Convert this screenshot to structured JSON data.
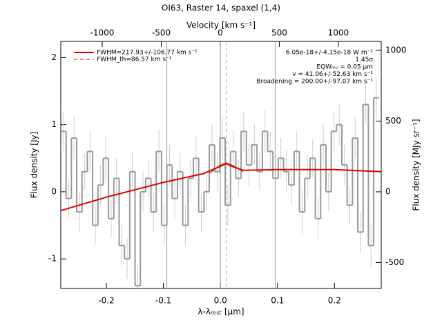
{
  "chart_data": {
    "type": "step",
    "title": "OI63, Raster 14, spaxel (1,4)",
    "xlabel": "λ-λᵣₑₛₜ [μm]",
    "ylabel": "Flux density [Jy]",
    "y2label": "Flux density [MJy sr⁻¹]",
    "x2label": "Velocity [km s⁻¹]",
    "xlim": [
      -0.28,
      0.282
    ],
    "ylim": [
      -1.44,
      2.24
    ],
    "y2lim": [
      -683,
      1063
    ],
    "x2lim": [
      -1351,
      1363
    ],
    "xticks": [
      -0.2,
      -0.1,
      {
        "value": 0,
        "label": "0.0"
      },
      0.1,
      0.2
    ],
    "yticks": [
      -1,
      0,
      1,
      2
    ],
    "y2ticks": [
      -500,
      0,
      500,
      1000
    ],
    "x2ticks": [
      -1000,
      -500,
      0,
      500,
      1000
    ],
    "x": [
      -0.2753,
      -0.266,
      -0.2567,
      -0.2474,
      -0.2381,
      -0.2288,
      -0.2195,
      -0.2102,
      -0.2009,
      -0.1916,
      -0.1823,
      -0.173,
      -0.1637,
      -0.1544,
      -0.1451,
      -0.1358,
      -0.1265,
      -0.1172,
      -0.1079,
      -0.0986,
      -0.0893,
      -0.08,
      -0.0707,
      -0.0614,
      -0.0521,
      -0.0428,
      -0.0335,
      -0.0242,
      -0.0149,
      -0.0056,
      0.0037,
      0.013,
      0.0223,
      0.0316,
      0.0409,
      0.0502,
      0.0595,
      0.0688,
      0.0781,
      0.0874,
      0.0967,
      0.106,
      0.1153,
      0.1246,
      0.1339,
      0.1432,
      0.1525,
      0.1618,
      0.1711,
      0.1804,
      0.1897,
      0.199,
      0.2083,
      0.2176,
      0.2269,
      0.2362,
      0.2455,
      0.2548,
      0.2641,
      0.2734
    ],
    "values": [
      0.9,
      -0.1,
      0.8,
      -0.3,
      0.3,
      0.6,
      -0.5,
      0.1,
      0.5,
      -0.4,
      0.2,
      -0.8,
      -1.0,
      0.3,
      -1.4,
      0.0,
      0.2,
      -0.3,
      0.6,
      -0.5,
      0.4,
      -0.1,
      0.3,
      -0.5,
      0.2,
      0.5,
      -0.3,
      0.0,
      0.7,
      0.3,
      0.8,
      -0.2,
      0.6,
      0.2,
      0.9,
      0.4,
      0.7,
      0.3,
      0.9,
      0.6,
      0.2,
      0.5,
      0.3,
      0.1,
      0.6,
      -0.3,
      0.2,
      0.5,
      -0.4,
      0.7,
      0.0,
      0.9,
      1.0,
      0.4,
      -0.2,
      0.8,
      -0.6,
      1.3,
      -0.8,
      1.4
    ],
    "errors": [
      0.3,
      0.28,
      0.32,
      0.3,
      0.27,
      0.31,
      0.29,
      0.3,
      0.33,
      0.28,
      0.3,
      0.32,
      0.3,
      0.29,
      0.31,
      0.3,
      0.28,
      0.3,
      0.32,
      0.29,
      0.3,
      0.31,
      0.28,
      0.3,
      0.29,
      0.32,
      0.3,
      0.28,
      0.31,
      0.3,
      0.29,
      0.3,
      0.32,
      0.28,
      0.3,
      0.31,
      0.3,
      0.29,
      0.32,
      0.3,
      0.28,
      0.3,
      0.31,
      0.29,
      0.3,
      0.32,
      0.3,
      0.28,
      0.31,
      0.3,
      0.29,
      0.3,
      0.32,
      0.3,
      0.28,
      0.31,
      0.3,
      0.29,
      0.32,
      0.3
    ],
    "color": "#999999",
    "fit": {
      "name": "FWHM=217.93+/-106.77 km s⁻¹",
      "color": "#dd0000",
      "x": [
        -0.28,
        -0.2,
        -0.1,
        -0.03,
        0.0,
        0.01,
        0.02,
        0.04,
        0.1,
        0.2,
        0.282
      ],
      "values": [
        -0.28,
        -0.08,
        0.14,
        0.27,
        0.38,
        0.42,
        0.38,
        0.32,
        0.33,
        0.33,
        0.3
      ]
    },
    "fit_th": {
      "name": "FWHM_th=86.57 km s⁻¹",
      "color": "#dd0000"
    },
    "component": {
      "color": "#b35a1f",
      "x": [
        -0.02,
        0.0,
        0.01,
        0.02,
        0.04
      ],
      "values": [
        0.27,
        0.4,
        0.43,
        0.4,
        0.3
      ]
    },
    "vlines": [
      -0.094,
      0,
      0.096
    ],
    "vline_dashed": 0.01,
    "annotations": [
      "6.05e-18+/-4.15e-18 W m⁻²",
      "1.45σ",
      "EQWₘᵤ = 0.05 μm",
      "v = 41.06+/-52.63 km s⁻¹",
      "Broadening = 200.00+/-97.07 km s⁻¹"
    ]
  }
}
